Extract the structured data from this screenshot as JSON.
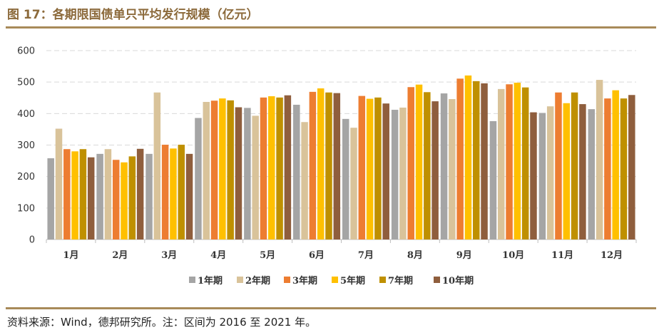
{
  "header": {
    "title": "图 17：各期限国债单只平均发行规模（亿元）"
  },
  "footer": {
    "source": "资料来源：Wind，德邦研究所。注：区间为 2016 至 2021 年。"
  },
  "colors": {
    "rule": "#a88a59",
    "title": "#8c6a3b",
    "grid": "#d9d9d9"
  },
  "chart_data": {
    "type": "bar",
    "title": "各期限国债单只平均发行规模（亿元）",
    "xlabel": "",
    "ylabel": "",
    "ylim": [
      0,
      600
    ],
    "yticks": [
      "0",
      "100",
      "200",
      "300",
      "400",
      "500",
      "600"
    ],
    "grid": true,
    "legend_position": "bottom",
    "categories": [
      "1月",
      "2月",
      "3月",
      "4月",
      "5月",
      "6月",
      "7月",
      "8月",
      "9月",
      "10月",
      "11月",
      "12月"
    ],
    "series": [
      {
        "name": "1年期",
        "color": "#a5a5a5",
        "values": [
          258,
          272,
          272,
          386,
          418,
          428,
          383,
          412,
          464,
          376,
          402,
          414
        ]
      },
      {
        "name": "2年期",
        "color": "#d9c39a",
        "values": [
          352,
          287,
          467,
          437,
          393,
          373,
          355,
          419,
          446,
          478,
          423,
          507
        ]
      },
      {
        "name": "3年期",
        "color": "#ed7d31",
        "values": [
          287,
          253,
          301,
          441,
          451,
          469,
          456,
          484,
          511,
          493,
          467,
          448
        ]
      },
      {
        "name": "5年期",
        "color": "#ffc000",
        "values": [
          280,
          245,
          289,
          448,
          455,
          480,
          447,
          492,
          521,
          498,
          433,
          474
        ]
      },
      {
        "name": "7年期",
        "color": "#bf9000",
        "values": [
          287,
          264,
          301,
          442,
          451,
          467,
          451,
          468,
          503,
          483,
          467,
          448
        ]
      },
      {
        "name": "10年期",
        "color": "#8f5e3d",
        "values": [
          261,
          288,
          272,
          420,
          458,
          465,
          432,
          439,
          496,
          404,
          430,
          459
        ]
      }
    ]
  }
}
